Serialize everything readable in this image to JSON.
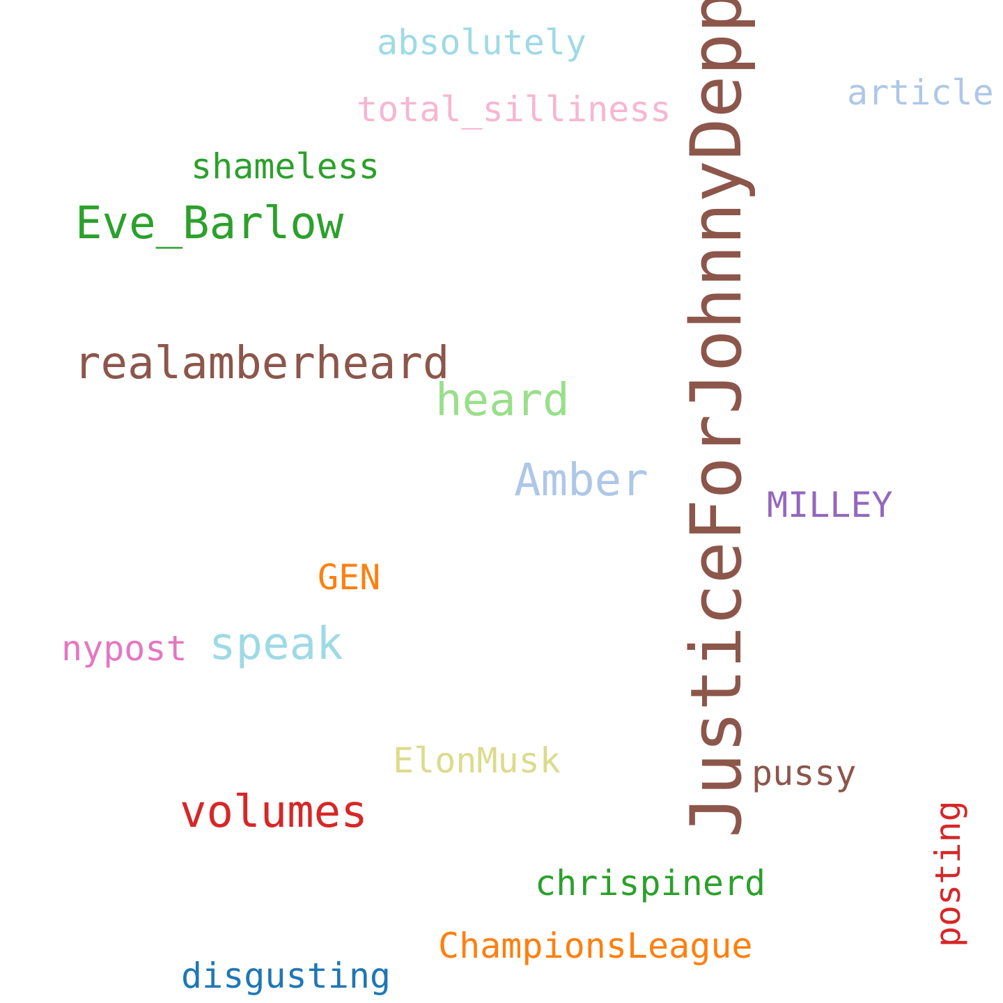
{
  "words": [
    {
      "id": "justice",
      "text": "JusticeForJohnnyDepp",
      "color": "#8c564b",
      "orientation": "vertical"
    },
    {
      "id": "absolutely",
      "text": "absolutely",
      "color": "#9edae5",
      "orientation": "horizontal"
    },
    {
      "id": "article",
      "text": "article",
      "color": "#aec7e8",
      "orientation": "horizontal"
    },
    {
      "id": "total",
      "text": "total_silliness",
      "color": "#f7b6d2",
      "orientation": "horizontal"
    },
    {
      "id": "shameless",
      "text": "shameless",
      "color": "#2ca02c",
      "orientation": "horizontal"
    },
    {
      "id": "eve",
      "text": "Eve_Barlow",
      "color": "#2ca02c",
      "orientation": "horizontal"
    },
    {
      "id": "realamber",
      "text": "realamberheard",
      "color": "#8c564b",
      "orientation": "horizontal"
    },
    {
      "id": "heard",
      "text": "heard",
      "color": "#98df8a",
      "orientation": "horizontal"
    },
    {
      "id": "amber",
      "text": "Amber",
      "color": "#aec7e8",
      "orientation": "horizontal"
    },
    {
      "id": "milley",
      "text": "MILLEY",
      "color": "#9467bd",
      "orientation": "horizontal"
    },
    {
      "id": "gen",
      "text": "GEN",
      "color": "#ff7f0e",
      "orientation": "horizontal"
    },
    {
      "id": "nypost",
      "text": "nypost",
      "color": "#e377c2",
      "orientation": "horizontal"
    },
    {
      "id": "speak",
      "text": "speak",
      "color": "#9edae5",
      "orientation": "horizontal"
    },
    {
      "id": "elonmusk",
      "text": "ElonMusk",
      "color": "#dbdb8d",
      "orientation": "horizontal"
    },
    {
      "id": "pussy",
      "text": "pussy",
      "color": "#8c564b",
      "orientation": "horizontal"
    },
    {
      "id": "volumes",
      "text": "volumes",
      "color": "#d62728",
      "orientation": "horizontal"
    },
    {
      "id": "posting",
      "text": "posting",
      "color": "#d62728",
      "orientation": "vertical"
    },
    {
      "id": "chrispinerd",
      "text": "chrispinerd",
      "color": "#2ca02c",
      "orientation": "horizontal"
    },
    {
      "id": "champions",
      "text": "ChampionsLeague",
      "color": "#ff7f0e",
      "orientation": "horizontal"
    },
    {
      "id": "disgusting",
      "text": "disgusting",
      "color": "#1f77b4",
      "orientation": "horizontal"
    }
  ]
}
